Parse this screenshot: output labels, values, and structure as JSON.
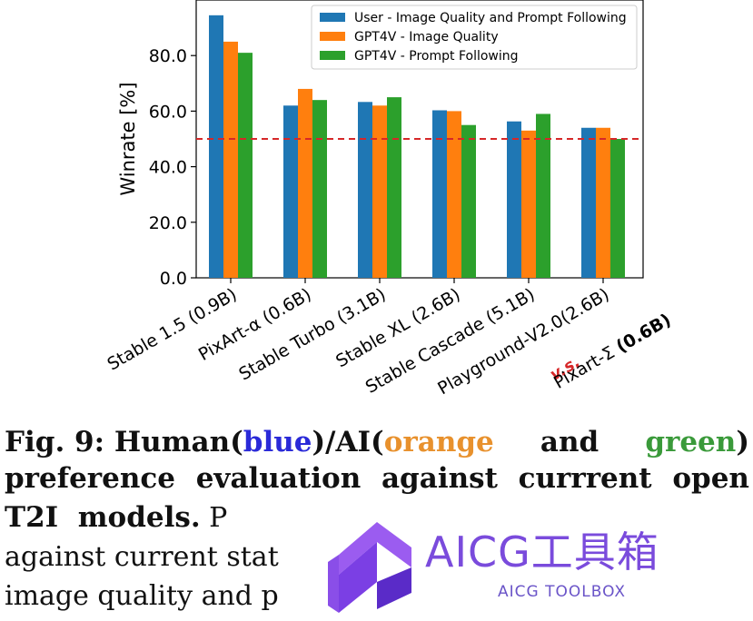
{
  "chart_data": {
    "type": "bar",
    "categories": [
      "Stable 1.5 (0.9B)",
      "PixArt-α (0.6B)",
      "Stable Turbo (3.1B)",
      "Stable XL (2.6B)",
      "Stable Cascade (5.1B)",
      "Playground-V2.0(2.6B)"
    ],
    "series": [
      {
        "name": "User - Image Quality and Prompt Following",
        "color": "#1f77b4",
        "values": [
          94.5,
          62.0,
          63.3,
          60.3,
          56.3,
          54.0
        ]
      },
      {
        "name": "GPT4V - Image Quality",
        "color": "#ff7f0e",
        "values": [
          85.0,
          68.0,
          62.0,
          60.0,
          53.0,
          54.0
        ]
      },
      {
        "name": "GPT4V - Prompt Following",
        "color": "#2ca02c",
        "values": [
          81.0,
          64.0,
          65.0,
          55.0,
          59.0,
          50.0
        ]
      }
    ],
    "ylabel": "Winrate [%]",
    "ylim": [
      0,
      100
    ],
    "yticks": [
      "0.0",
      "20.0",
      "40.0",
      "60.0",
      "80.0"
    ],
    "reference_line": {
      "value": 50,
      "color": "#d62728",
      "style": "dashed"
    },
    "legend_position": "top-right",
    "grid": false,
    "comparison_label": {
      "vs": "v.s.",
      "model_prefix": "Pixart-Σ ",
      "model_size": "(0.6B)"
    }
  },
  "caption": {
    "fig_label": "Fig. 9:",
    "line1_pre": " Human(",
    "blue": "blue",
    "line1_mid": ")/AI(",
    "orange": "orange",
    "and_word": "and",
    "green": "green",
    "line1_end": ")",
    "line2_words": [
      "preference",
      "evaluation",
      "against",
      "currrent",
      "open"
    ],
    "line3_bold": "T2I  models.",
    "line3_rest": " P",
    "line4": "against current stat",
    "line5": "image quality and p"
  },
  "watermark": {
    "title": "AICG工具箱",
    "subtitle": "AICG TOOLBOX"
  }
}
